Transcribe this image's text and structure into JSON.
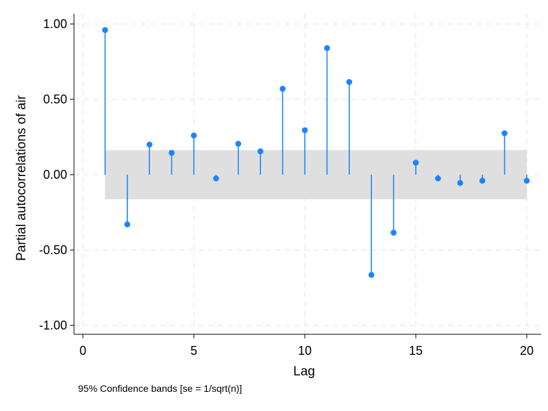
{
  "chart_data": {
    "type": "pacf",
    "xlabel": "Lag",
    "ylabel": "Partial autocorrelations of air",
    "note": "95% Confidence bands [se = 1/sqrt(n)]",
    "xlim": [
      0,
      20
    ],
    "ylim": [
      -1,
      1
    ],
    "x_ticks": [
      0,
      5,
      10,
      15,
      20
    ],
    "x_tick_labels": [
      "0",
      "5",
      "10",
      "15",
      "20"
    ],
    "y_ticks": [
      1,
      0.5,
      0,
      -0.5,
      -1
    ],
    "y_tick_labels": [
      "1.00",
      "0.50",
      "0.00",
      "-0.50",
      "-1.00"
    ],
    "grid": true,
    "confidence_band": {
      "from_lag": 1,
      "to_lag": 20,
      "upper": 0.163,
      "lower": -0.163,
      "color": "#dfdfdf"
    },
    "series_color": "#1a85ff",
    "x": [
      1,
      2,
      3,
      4,
      5,
      6,
      7,
      8,
      9,
      10,
      11,
      12,
      13,
      14,
      15,
      16,
      17,
      18,
      19,
      20
    ],
    "values": [
      0.96,
      -0.33,
      0.2,
      0.145,
      0.26,
      -0.025,
      0.205,
      0.155,
      0.57,
      0.295,
      0.84,
      0.615,
      -0.665,
      -0.385,
      0.08,
      -0.025,
      -0.055,
      -0.04,
      0.275,
      -0.04
    ]
  }
}
